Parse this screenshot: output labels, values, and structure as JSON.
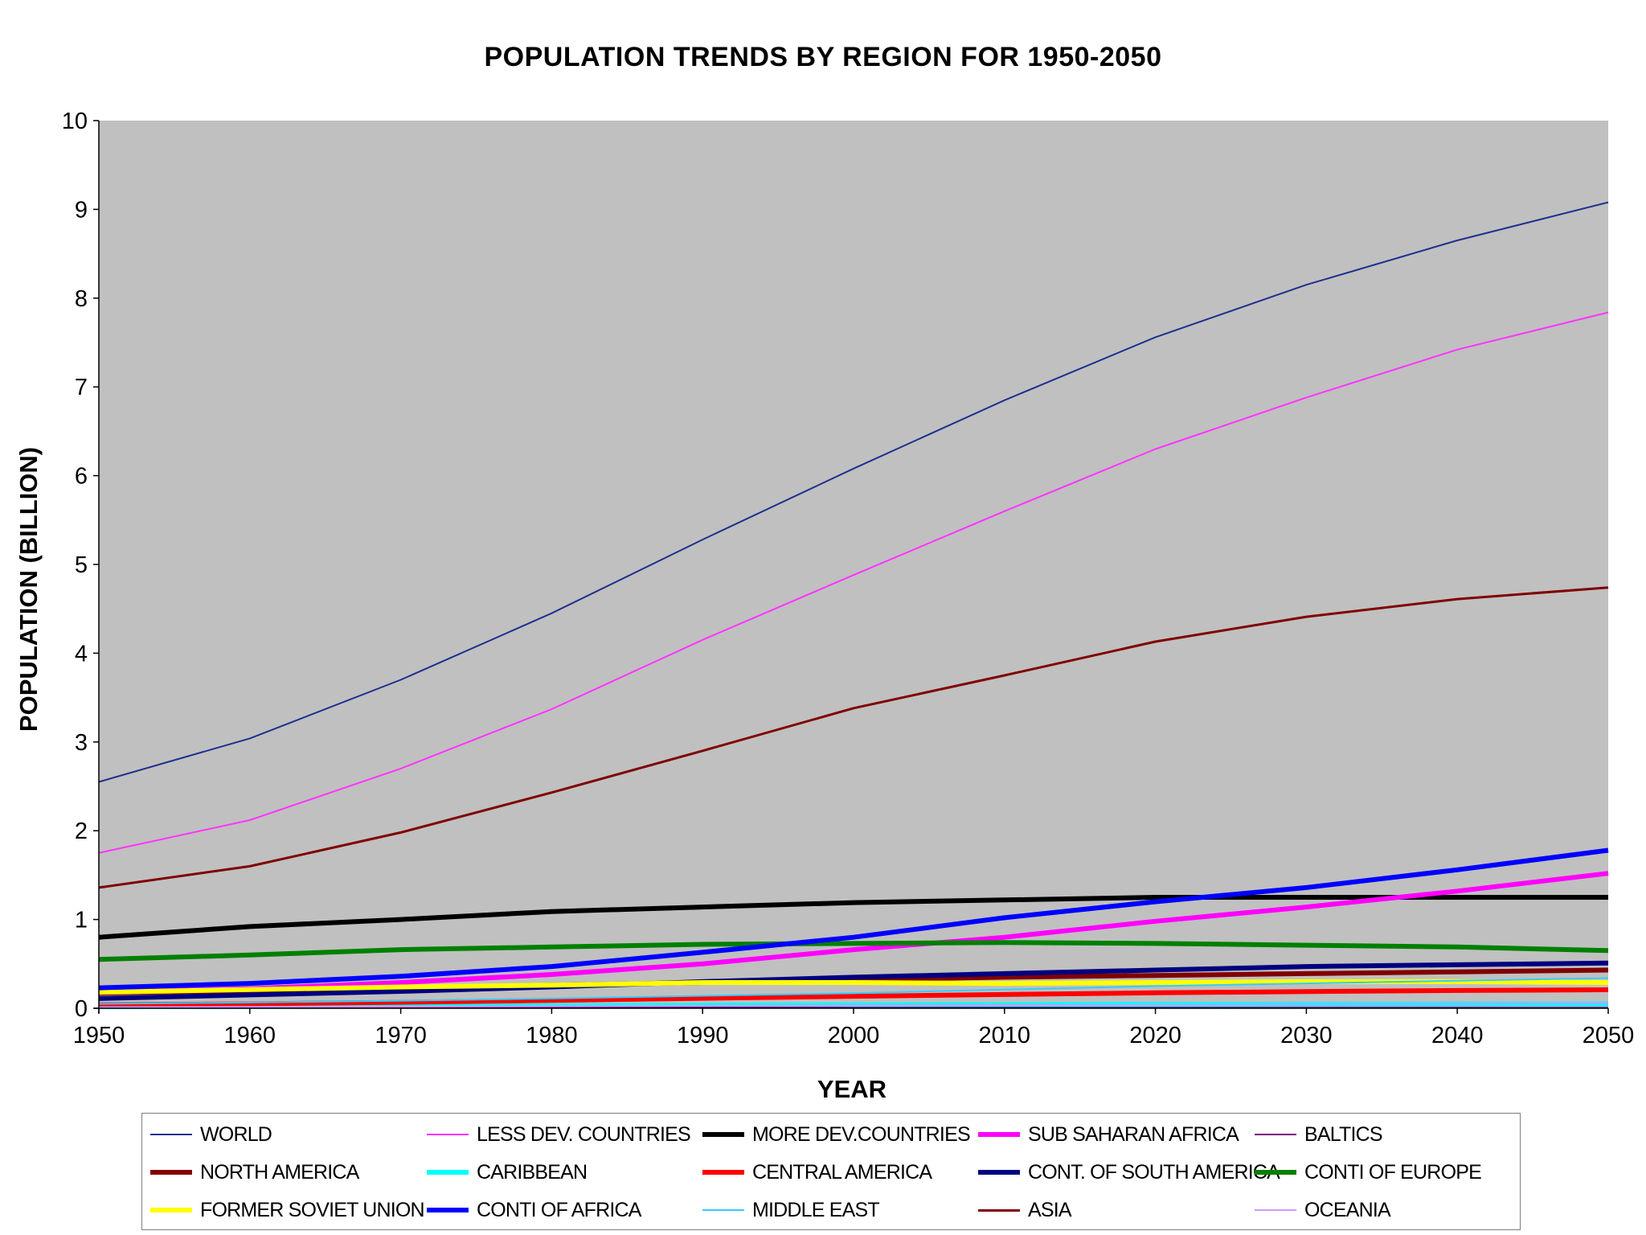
{
  "chart_data": {
    "type": "line",
    "title": "POPULATION TRENDS BY REGION FOR 1950-2050",
    "xlabel": "YEAR",
    "ylabel": "POPULATION (BILLION)",
    "xlim": [
      1950,
      2050
    ],
    "ylim": [
      0,
      10
    ],
    "x_ticks": [
      "1950",
      "1960",
      "1970",
      "1980",
      "1990",
      "2000",
      "2010",
      "2020",
      "2030",
      "2040",
      "2050"
    ],
    "y_ticks": [
      "0",
      "1",
      "2",
      "3",
      "4",
      "5",
      "6",
      "7",
      "8",
      "9",
      "10"
    ],
    "grid": false,
    "plot_background": "#c0c0c0",
    "legend_position": "bottom",
    "x": [
      1950,
      1960,
      1970,
      1980,
      1990,
      2000,
      2010,
      2020,
      2030,
      2040,
      2050
    ],
    "series": [
      {
        "name": "WORLD",
        "color": "#1f2f8f",
        "width": 2,
        "values": [
          2.55,
          3.04,
          3.7,
          4.45,
          5.28,
          6.08,
          6.85,
          7.56,
          8.15,
          8.65,
          9.08
        ]
      },
      {
        "name": "LESS DEV. COUNTRIES",
        "color": "#ff33ff",
        "width": 2,
        "values": [
          1.75,
          2.12,
          2.7,
          3.37,
          4.15,
          4.88,
          5.6,
          6.3,
          6.88,
          7.42,
          7.84
        ]
      },
      {
        "name": "MORE DEV.COUNTRIES",
        "color": "#000000",
        "width": 6,
        "values": [
          0.8,
          0.92,
          1.0,
          1.09,
          1.14,
          1.19,
          1.22,
          1.25,
          1.25,
          1.25,
          1.25
        ]
      },
      {
        "name": "SUB SAHARAN AFRICA",
        "color": "#ff00ff",
        "width": 6,
        "values": [
          0.18,
          0.22,
          0.29,
          0.38,
          0.5,
          0.66,
          0.8,
          0.98,
          1.14,
          1.32,
          1.52
        ]
      },
      {
        "name": "BALTICS",
        "color": "#7f007f",
        "width": 2,
        "values": [
          0.006,
          0.006,
          0.007,
          0.007,
          0.008,
          0.007,
          0.007,
          0.006,
          0.006,
          0.006,
          0.005
        ]
      },
      {
        "name": "NORTH AMERICA",
        "color": "#800000",
        "width": 6,
        "values": [
          0.17,
          0.2,
          0.23,
          0.26,
          0.29,
          0.32,
          0.35,
          0.37,
          0.39,
          0.41,
          0.43
        ]
      },
      {
        "name": "CARIBBEAN",
        "color": "#00ffff",
        "width": 6,
        "values": [
          0.017,
          0.02,
          0.025,
          0.029,
          0.034,
          0.038,
          0.041,
          0.044,
          0.046,
          0.047,
          0.048
        ]
      },
      {
        "name": "CENTRAL AMERICA",
        "color": "#ff0000",
        "width": 6,
        "values": [
          0.038,
          0.05,
          0.067,
          0.089,
          0.112,
          0.135,
          0.155,
          0.174,
          0.188,
          0.2,
          0.208
        ]
      },
      {
        "name": "CONT. OF SOUTH AMERICA",
        "color": "#000080",
        "width": 6,
        "values": [
          0.11,
          0.15,
          0.19,
          0.24,
          0.3,
          0.35,
          0.39,
          0.43,
          0.47,
          0.49,
          0.51
        ]
      },
      {
        "name": "CONTI OF EUROPE",
        "color": "#008000",
        "width": 6,
        "values": [
          0.55,
          0.6,
          0.66,
          0.69,
          0.72,
          0.73,
          0.74,
          0.73,
          0.71,
          0.69,
          0.65
        ]
      },
      {
        "name": "FORMER SOVIET UNION",
        "color": "#ffff00",
        "width": 6,
        "values": [
          0.18,
          0.21,
          0.24,
          0.26,
          0.29,
          0.29,
          0.28,
          0.29,
          0.3,
          0.3,
          0.29
        ]
      },
      {
        "name": "CONTI OF AFRICA",
        "color": "#0000ff",
        "width": 6,
        "values": [
          0.23,
          0.28,
          0.36,
          0.47,
          0.63,
          0.8,
          1.02,
          1.2,
          1.36,
          1.56,
          1.78
        ]
      },
      {
        "name": "MIDDLE EAST",
        "color": "#33ccff",
        "width": 2,
        "values": [
          0.05,
          0.065,
          0.085,
          0.11,
          0.14,
          0.17,
          0.21,
          0.25,
          0.28,
          0.31,
          0.34
        ]
      },
      {
        "name": "ASIA",
        "color": "#800000",
        "width": 3,
        "values": [
          1.36,
          1.6,
          1.98,
          2.43,
          2.9,
          3.38,
          3.75,
          4.13,
          4.41,
          4.61,
          4.74
        ]
      },
      {
        "name": "OCEANIA",
        "color": "#cc99ff",
        "width": 2,
        "values": [
          0.013,
          0.016,
          0.019,
          0.023,
          0.027,
          0.031,
          0.036,
          0.041,
          0.046,
          0.05,
          0.054
        ]
      }
    ]
  }
}
